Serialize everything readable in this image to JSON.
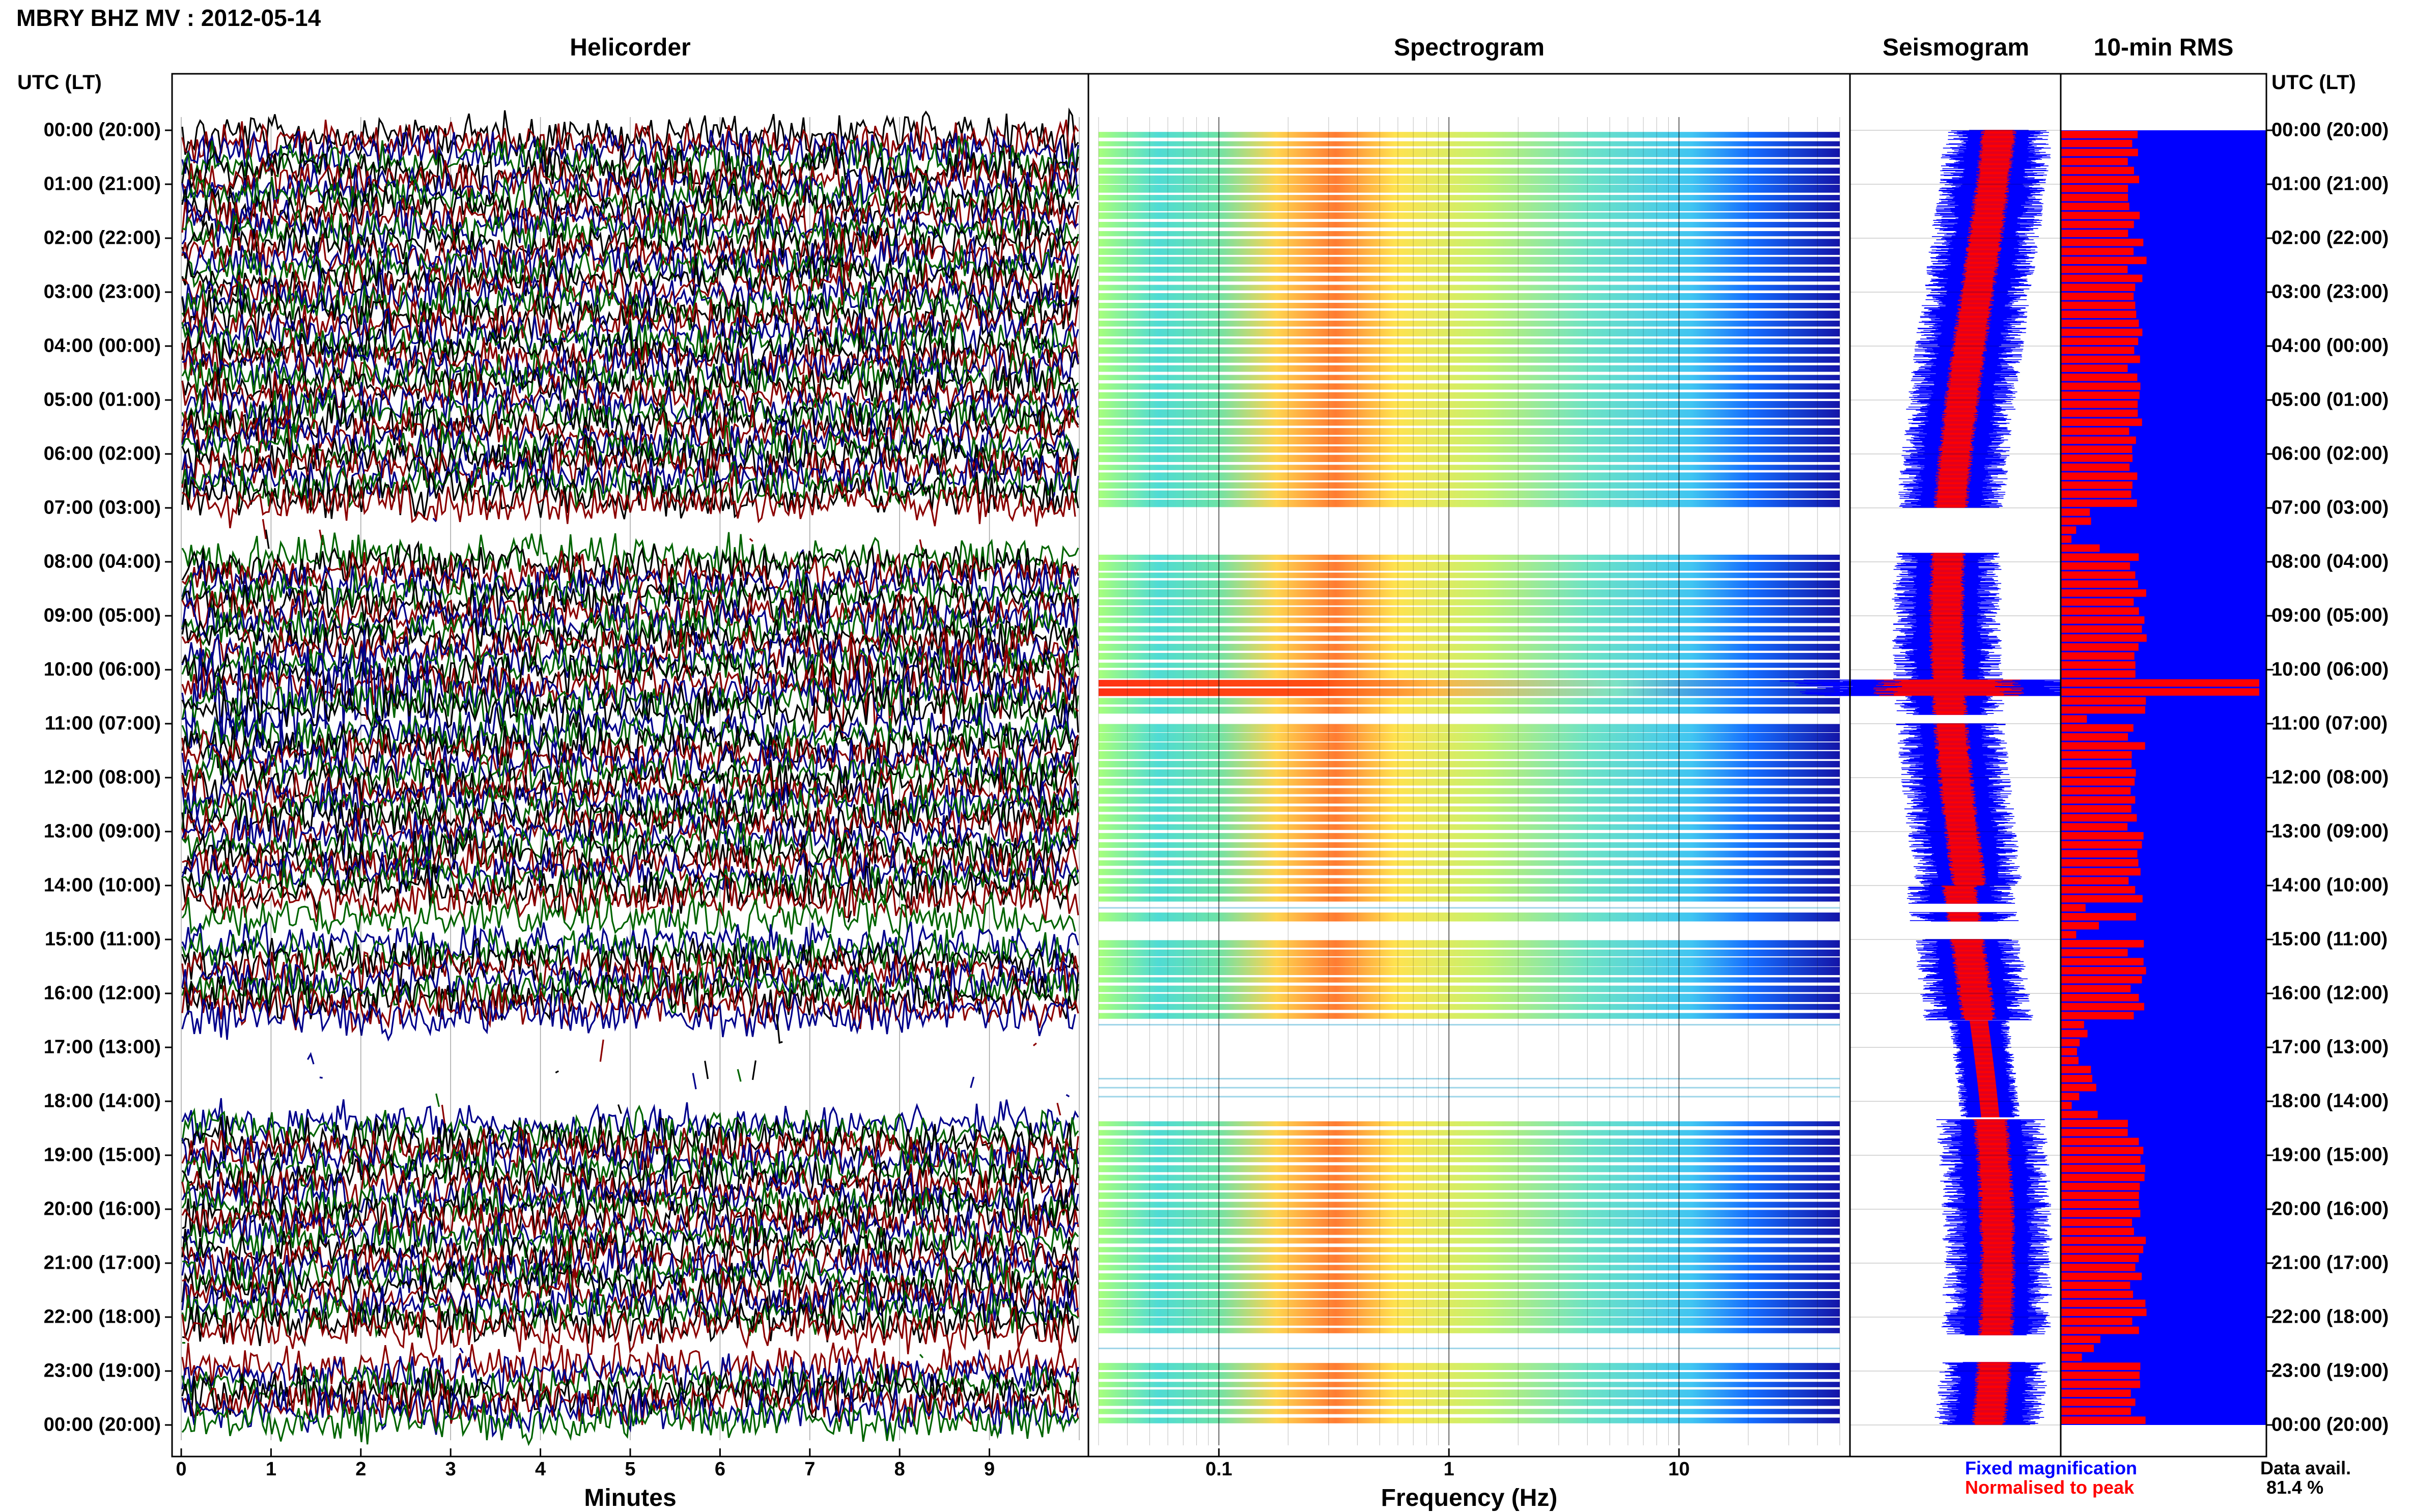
{
  "title": "MBRY BHZ MV : 2012-05-14",
  "panels": {
    "helicorder": "Helicorder",
    "spectrogram": "Spectrogram",
    "seismogram": "Seismogram",
    "rms": "10-min RMS"
  },
  "time_axis_label": "UTC (LT)",
  "time_labels": [
    "00:00 (20:00)",
    "01:00 (21:00)",
    "02:00 (22:00)",
    "03:00 (23:00)",
    "04:00 (00:00)",
    "05:00 (01:00)",
    "06:00 (02:00)",
    "07:00 (03:00)",
    "08:00 (04:00)",
    "09:00 (05:00)",
    "10:00 (06:00)",
    "11:00 (07:00)",
    "12:00 (08:00)",
    "13:00 (09:00)",
    "14:00 (10:00)",
    "15:00 (11:00)",
    "16:00 (12:00)",
    "17:00 (13:00)",
    "18:00 (14:00)",
    "19:00 (15:00)",
    "20:00 (16:00)",
    "21:00 (17:00)",
    "22:00 (18:00)",
    "23:00 (19:00)",
    "00:00 (20:00)"
  ],
  "helicorder_x": {
    "label": "Minutes",
    "ticks": [
      "0",
      "1",
      "2",
      "3",
      "4",
      "5",
      "6",
      "7",
      "8",
      "9"
    ]
  },
  "spectrogram_x": {
    "label": "Frequency (Hz)",
    "ticks": [
      "0.1",
      "1",
      "10"
    ]
  },
  "legend": {
    "fixed": "Fixed magnification",
    "normalised": "Normalised to peak",
    "fixed_color": "#0000ff",
    "normalised_color": "#ff0000"
  },
  "data_avail": {
    "label": "Data avail.",
    "value": "81.4 %"
  },
  "colors": {
    "trace_cycle": [
      "#000000",
      "#8b0000",
      "#00008b",
      "#006400"
    ],
    "spectro_low": "#0000a0",
    "spectro_mid": "#40d0e0",
    "spectro_high": "#ff3000",
    "seismo_fixed": "#0000ff",
    "seismo_norm": "#ff0000",
    "rms_fill": "#0000ff",
    "rms_bar": "#ff0000"
  },
  "chart_data": {
    "type": "table",
    "title": "MBRY BHZ MV : 2012-05-14",
    "time_range_utc_hours": [
      0,
      24
    ],
    "helicorder_minutes_range": [
      0,
      10
    ],
    "spectrogram_frequency_range_hz": [
      0.03,
      50
    ],
    "spectrogram_log_scale": true,
    "data_gaps_utc": [
      {
        "start": "07:00",
        "end": "07:50"
      },
      {
        "start": "10:50",
        "end": "11:00"
      },
      {
        "start": "14:20",
        "end": "14:30"
      },
      {
        "start": "14:40",
        "end": "15:00"
      },
      {
        "start": "16:30",
        "end": "18:20"
      },
      {
        "start": "22:20",
        "end": "22:50"
      }
    ],
    "event_utc": "10:20",
    "data_availability_percent": 81.4
  }
}
